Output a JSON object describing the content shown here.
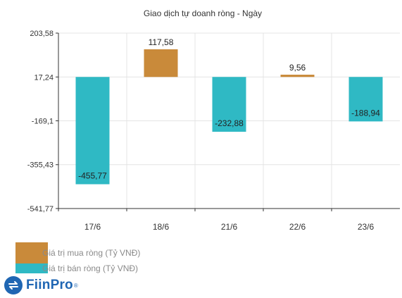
{
  "chart_data": {
    "type": "bar",
    "title": "Giao dịch tự doanh ròng - Ngày",
    "categories": [
      "17/6",
      "18/6",
      "21/6",
      "22/6",
      "23/6"
    ],
    "values": [
      -455.77,
      117.58,
      -232.88,
      9.56,
      -188.94
    ],
    "value_labels": [
      "-455,77",
      "117,58",
      "-232,88",
      "9,56",
      "-188,94"
    ],
    "y_ticks": [
      203.58,
      17.24,
      -169.1,
      -355.43,
      -541.77
    ],
    "y_tick_labels": [
      "203,58",
      "17,24",
      "-169,1",
      "-355,43",
      "-541,77"
    ],
    "ylim": [
      -541.77,
      203.58
    ],
    "grid": true,
    "legend_position": "bottom-left",
    "colors": {
      "positive": "#c98a3a",
      "negative": "#2fb9c4"
    }
  },
  "legend": {
    "positive_label": "Giá trị mua ròng (Tỷ VNĐ)",
    "negative_label": "Giá trị bán ròng (Tỷ VNĐ)"
  },
  "brand": {
    "name": "FiinPro",
    "mark": "®"
  }
}
